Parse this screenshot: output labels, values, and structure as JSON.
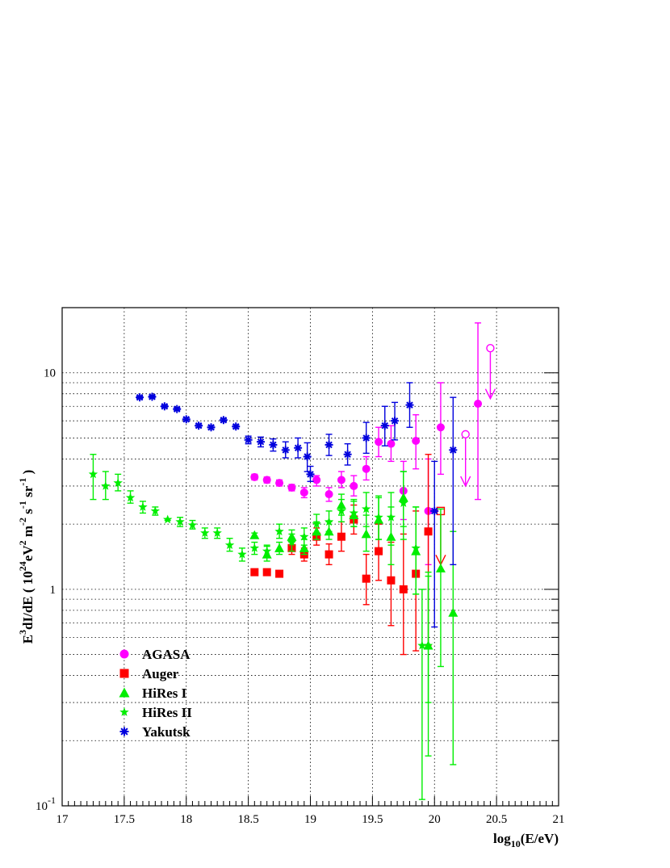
{
  "chart_data": {
    "type": "scatter",
    "title": "",
    "xlabel": {
      "prefix": "log",
      "sub": "10",
      "suffix": "(E/eV)"
    },
    "ylabel": {
      "parts": [
        {
          "t": "E",
          "s": "n"
        },
        {
          "t": "3",
          "s": "sup"
        },
        {
          "t": "dI/dE ( 10",
          "s": "n"
        },
        {
          "t": "24",
          "s": "sup"
        },
        {
          "t": "eV",
          "s": "n"
        },
        {
          "t": "2",
          "s": "sup"
        },
        {
          "t": " m",
          "s": "n"
        },
        {
          "t": "-2",
          "s": "sup"
        },
        {
          "t": " s",
          "s": "n"
        },
        {
          "t": "-1",
          "s": "sup"
        },
        {
          "t": " sr",
          "s": "n"
        },
        {
          "t": "-1",
          "s": "sup"
        },
        {
          "t": " )",
          "s": "n"
        }
      ]
    },
    "xlim": [
      17,
      21
    ],
    "ylim": [
      0.1,
      20
    ],
    "yscale": "log",
    "grid": true,
    "legend_position": "lower-left",
    "x_ticks": [
      "17",
      "17.5",
      "18",
      "18.5",
      "19",
      "19.5",
      "20",
      "20.5",
      "21"
    ],
    "y_ticks": [
      {
        "value": 10,
        "label": "10",
        "exp": ""
      },
      {
        "value": 1,
        "label": "1",
        "exp": ""
      },
      {
        "value": 0.1,
        "label": "10",
        "exp": "-1"
      }
    ],
    "series": [
      {
        "name": "AGASA",
        "color": "#ff00ff",
        "marker": "circle",
        "points": [
          {
            "x": 18.55,
            "y": 3.3,
            "lo": 3.2,
            "hi": 3.4
          },
          {
            "x": 18.65,
            "y": 3.2,
            "lo": 3.1,
            "hi": 3.3
          },
          {
            "x": 18.75,
            "y": 3.1,
            "lo": 3.0,
            "hi": 3.2
          },
          {
            "x": 18.85,
            "y": 2.95,
            "lo": 2.85,
            "hi": 3.05
          },
          {
            "x": 18.95,
            "y": 2.8,
            "lo": 2.65,
            "hi": 2.95
          },
          {
            "x": 19.05,
            "y": 3.2,
            "lo": 3.0,
            "hi": 3.35
          },
          {
            "x": 19.15,
            "y": 2.75,
            "lo": 2.55,
            "hi": 2.95
          },
          {
            "x": 19.25,
            "y": 3.2,
            "lo": 2.95,
            "hi": 3.5
          },
          {
            "x": 19.35,
            "y": 3.0,
            "lo": 2.7,
            "hi": 3.35
          },
          {
            "x": 19.45,
            "y": 3.6,
            "lo": 3.2,
            "hi": 4.1
          },
          {
            "x": 19.55,
            "y": 4.8,
            "lo": 4.1,
            "hi": 5.6
          },
          {
            "x": 19.65,
            "y": 4.7,
            "lo": 3.9,
            "hi": 5.7
          },
          {
            "x": 19.75,
            "y": 2.85,
            "lo": 2.1,
            "hi": 3.9
          },
          {
            "x": 19.85,
            "y": 4.85,
            "lo": 3.6,
            "hi": 6.4
          },
          {
            "x": 19.95,
            "y": 2.3,
            "lo": 1.3,
            "hi": 4.0
          },
          {
            "x": 20.05,
            "y": 5.6,
            "lo": 3.4,
            "hi": 9.0
          },
          {
            "x": 20.35,
            "y": 7.2,
            "lo": 2.6,
            "hi": 17.0
          }
        ],
        "upper_limits": [
          {
            "x": 20.25,
            "y": 5.2,
            "to": 3.0
          },
          {
            "x": 20.45,
            "y": 13.0,
            "to": 7.6
          }
        ]
      },
      {
        "name": "Auger",
        "color": "#ff0000",
        "marker": "square",
        "points": [
          {
            "x": 18.55,
            "y": 1.2,
            "lo": 1.2,
            "hi": 1.2
          },
          {
            "x": 18.65,
            "y": 1.2,
            "lo": 1.2,
            "hi": 1.2
          },
          {
            "x": 18.75,
            "y": 1.18,
            "lo": 1.15,
            "hi": 1.22
          },
          {
            "x": 18.85,
            "y": 1.55,
            "lo": 1.45,
            "hi": 1.65
          },
          {
            "x": 18.95,
            "y": 1.45,
            "lo": 1.35,
            "hi": 1.55
          },
          {
            "x": 19.05,
            "y": 1.75,
            "lo": 1.6,
            "hi": 1.92
          },
          {
            "x": 19.15,
            "y": 1.45,
            "lo": 1.3,
            "hi": 1.62
          },
          {
            "x": 19.25,
            "y": 1.75,
            "lo": 1.5,
            "hi": 2.05
          },
          {
            "x": 19.35,
            "y": 2.1,
            "lo": 1.8,
            "hi": 2.45
          },
          {
            "x": 19.45,
            "y": 1.12,
            "lo": 0.85,
            "hi": 1.45
          },
          {
            "x": 19.55,
            "y": 1.5,
            "lo": 1.1,
            "hi": 2.0
          },
          {
            "x": 19.65,
            "y": 1.1,
            "lo": 0.68,
            "hi": 1.65
          },
          {
            "x": 19.75,
            "y": 1.0,
            "lo": 0.5,
            "hi": 1.8
          },
          {
            "x": 19.85,
            "y": 1.18,
            "lo": 0.52,
            "hi": 2.3
          },
          {
            "x": 19.95,
            "y": 1.85,
            "lo": 0.55,
            "hi": 4.2
          }
        ],
        "upper_limits": [
          {
            "x": 20.05,
            "y": 2.3,
            "to": 1.3
          }
        ]
      },
      {
        "name": "HiRes I",
        "color": "#00ee00",
        "marker": "triangle",
        "points": [
          {
            "x": 18.55,
            "y": 1.78,
            "lo": 1.74,
            "hi": 1.82
          },
          {
            "x": 18.65,
            "y": 1.45,
            "lo": 1.35,
            "hi": 1.58
          },
          {
            "x": 18.75,
            "y": 1.55,
            "lo": 1.45,
            "hi": 1.65
          },
          {
            "x": 18.85,
            "y": 1.75,
            "lo": 1.65,
            "hi": 1.88
          },
          {
            "x": 18.95,
            "y": 1.55,
            "lo": 1.45,
            "hi": 1.7
          },
          {
            "x": 19.05,
            "y": 1.85,
            "lo": 1.7,
            "hi": 2.05
          },
          {
            "x": 19.15,
            "y": 1.85,
            "lo": 1.7,
            "hi": 2.05
          },
          {
            "x": 19.25,
            "y": 2.45,
            "lo": 2.2,
            "hi": 2.75
          },
          {
            "x": 19.35,
            "y": 2.2,
            "lo": 1.95,
            "hi": 2.55
          },
          {
            "x": 19.45,
            "y": 1.8,
            "lo": 1.5,
            "hi": 2.2
          },
          {
            "x": 19.55,
            "y": 2.1,
            "lo": 1.7,
            "hi": 2.65
          },
          {
            "x": 19.65,
            "y": 1.75,
            "lo": 1.3,
            "hi": 2.4
          },
          {
            "x": 19.75,
            "y": 2.65,
            "lo": 1.95,
            "hi": 3.5
          },
          {
            "x": 19.85,
            "y": 1.5,
            "lo": 0.95,
            "hi": 2.4
          },
          {
            "x": 19.95,
            "y": 0.55,
            "lo": 0.3,
            "hi": 1.2
          },
          {
            "x": 20.05,
            "y": 1.25,
            "lo": 0.44,
            "hi": 2.35
          },
          {
            "x": 20.15,
            "y": 0.78,
            "lo": 0.155,
            "hi": 1.85
          }
        ],
        "upper_limits": []
      },
      {
        "name": "HiRes II",
        "color": "#00ee00",
        "marker": "star",
        "points": [
          {
            "x": 17.25,
            "y": 3.4,
            "lo": 2.6,
            "hi": 4.2
          },
          {
            "x": 17.35,
            "y": 3.0,
            "lo": 2.6,
            "hi": 3.5
          },
          {
            "x": 17.45,
            "y": 3.1,
            "lo": 2.85,
            "hi": 3.4
          },
          {
            "x": 17.55,
            "y": 2.65,
            "lo": 2.5,
            "hi": 2.85
          },
          {
            "x": 17.65,
            "y": 2.4,
            "lo": 2.25,
            "hi": 2.55
          },
          {
            "x": 17.75,
            "y": 2.3,
            "lo": 2.2,
            "hi": 2.4
          },
          {
            "x": 17.85,
            "y": 2.1,
            "lo": 2.08,
            "hi": 2.12
          },
          {
            "x": 17.95,
            "y": 2.05,
            "lo": 1.95,
            "hi": 2.15
          },
          {
            "x": 18.05,
            "y": 1.98,
            "lo": 1.9,
            "hi": 2.08
          },
          {
            "x": 18.15,
            "y": 1.82,
            "lo": 1.72,
            "hi": 1.92
          },
          {
            "x": 18.25,
            "y": 1.82,
            "lo": 1.72,
            "hi": 1.92
          },
          {
            "x": 18.35,
            "y": 1.6,
            "lo": 1.5,
            "hi": 1.72
          },
          {
            "x": 18.45,
            "y": 1.45,
            "lo": 1.35,
            "hi": 1.55
          },
          {
            "x": 18.55,
            "y": 1.55,
            "lo": 1.45,
            "hi": 1.65
          },
          {
            "x": 18.65,
            "y": 1.5,
            "lo": 1.4,
            "hi": 1.6
          },
          {
            "x": 18.75,
            "y": 1.85,
            "lo": 1.72,
            "hi": 2.0
          },
          {
            "x": 18.85,
            "y": 1.65,
            "lo": 1.5,
            "hi": 1.8
          },
          {
            "x": 18.95,
            "y": 1.75,
            "lo": 1.6,
            "hi": 1.92
          },
          {
            "x": 19.05,
            "y": 2.0,
            "lo": 1.8,
            "hi": 2.22
          },
          {
            "x": 19.15,
            "y": 2.05,
            "lo": 1.85,
            "hi": 2.3
          },
          {
            "x": 19.25,
            "y": 2.3,
            "lo": 2.05,
            "hi": 2.6
          },
          {
            "x": 19.35,
            "y": 2.25,
            "lo": 1.95,
            "hi": 2.6
          },
          {
            "x": 19.45,
            "y": 2.35,
            "lo": 1.95,
            "hi": 2.8
          },
          {
            "x": 19.55,
            "y": 2.15,
            "lo": 1.7,
            "hi": 2.7
          },
          {
            "x": 19.65,
            "y": 2.15,
            "lo": 1.6,
            "hi": 2.8
          },
          {
            "x": 19.75,
            "y": 2.5,
            "lo": 1.7,
            "hi": 3.5
          },
          {
            "x": 19.85,
            "y": 1.55,
            "lo": 0.95,
            "hi": 2.4
          },
          {
            "x": 19.9,
            "y": 0.55,
            "lo": 0.107,
            "hi": 1.0
          },
          {
            "x": 19.95,
            "y": 0.55,
            "lo": 0.17,
            "hi": 1.15
          }
        ],
        "upper_limits": []
      },
      {
        "name": "Yakutsk",
        "color": "#0000dd",
        "marker": "asterisk",
        "points": [
          {
            "x": 17.625,
            "y": 7.7,
            "lo": 7.6,
            "hi": 7.8
          },
          {
            "x": 17.725,
            "y": 7.75,
            "lo": 7.65,
            "hi": 7.85
          },
          {
            "x": 17.825,
            "y": 7.0,
            "lo": 6.9,
            "hi": 7.1
          },
          {
            "x": 17.925,
            "y": 6.8,
            "lo": 6.7,
            "hi": 6.9
          },
          {
            "x": 18.0,
            "y": 6.1,
            "lo": 6.0,
            "hi": 6.2
          },
          {
            "x": 18.1,
            "y": 5.7,
            "lo": 5.6,
            "hi": 5.8
          },
          {
            "x": 18.2,
            "y": 5.6,
            "lo": 5.5,
            "hi": 5.7
          },
          {
            "x": 18.3,
            "y": 6.05,
            "lo": 5.95,
            "hi": 6.15
          },
          {
            "x": 18.4,
            "y": 5.65,
            "lo": 5.55,
            "hi": 5.75
          },
          {
            "x": 18.5,
            "y": 4.9,
            "lo": 4.7,
            "hi": 5.1
          },
          {
            "x": 18.6,
            "y": 4.8,
            "lo": 4.55,
            "hi": 5.05
          },
          {
            "x": 18.7,
            "y": 4.65,
            "lo": 4.35,
            "hi": 4.95
          },
          {
            "x": 18.8,
            "y": 4.4,
            "lo": 4.05,
            "hi": 4.8
          },
          {
            "x": 18.9,
            "y": 4.5,
            "lo": 4.05,
            "hi": 5.0
          },
          {
            "x": 18.975,
            "y": 4.1,
            "lo": 3.5,
            "hi": 4.75
          },
          {
            "x": 19.0,
            "y": 3.4,
            "lo": 3.15,
            "hi": 3.7
          },
          {
            "x": 19.15,
            "y": 4.65,
            "lo": 4.15,
            "hi": 5.2
          },
          {
            "x": 19.3,
            "y": 4.2,
            "lo": 3.75,
            "hi": 4.7
          },
          {
            "x": 19.45,
            "y": 5.0,
            "lo": 4.25,
            "hi": 5.9
          },
          {
            "x": 19.6,
            "y": 5.7,
            "lo": 4.6,
            "hi": 7.0
          },
          {
            "x": 19.68,
            "y": 6.0,
            "lo": 4.9,
            "hi": 7.3
          },
          {
            "x": 19.8,
            "y": 7.1,
            "lo": 5.6,
            "hi": 9.0
          },
          {
            "x": 20.0,
            "y": 2.3,
            "lo": 0.67,
            "hi": 3.9
          },
          {
            "x": 20.15,
            "y": 4.4,
            "lo": 1.3,
            "hi": 7.7
          }
        ],
        "upper_limits": []
      }
    ]
  }
}
